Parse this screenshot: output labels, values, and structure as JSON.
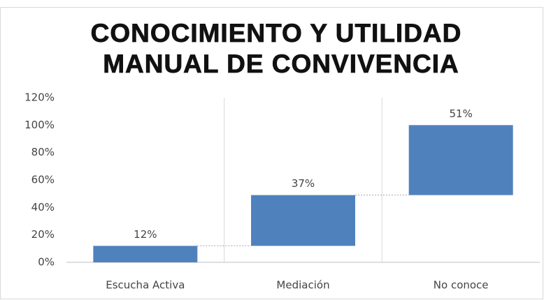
{
  "chart_data": {
    "type": "waterfall",
    "title": [
      "CONOCIMIENTO Y UTILIDAD",
      "MANUAL DE CONVIVENCIA"
    ],
    "categories": [
      "Escucha Activa",
      "Mediación",
      "No conoce"
    ],
    "values": [
      12,
      37,
      51
    ],
    "value_labels": [
      "12%",
      "37%",
      "51%"
    ],
    "color": "#4f81bd",
    "ylim": [
      0,
      120
    ],
    "yticks": [
      {
        "value": 0,
        "label": "0%"
      },
      {
        "value": 20,
        "label": "20%"
      },
      {
        "value": 40,
        "label": "40%"
      },
      {
        "value": 60,
        "label": "60%"
      },
      {
        "value": 80,
        "label": "80%"
      },
      {
        "value": 100,
        "label": "100%"
      },
      {
        "value": 120,
        "label": "120%"
      }
    ],
    "grid": false
  }
}
